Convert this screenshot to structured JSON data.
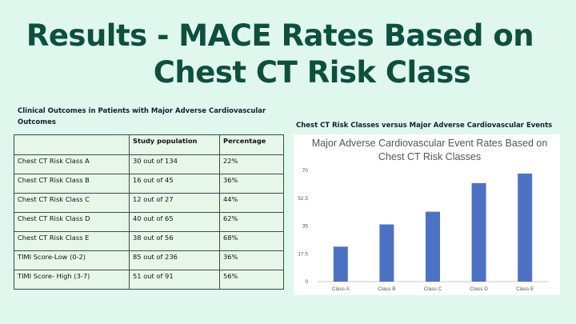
{
  "slide": {
    "title_line1": "Results - MACE Rates Based on",
    "title_line2": "Chest CT Risk Class"
  },
  "table": {
    "caption": "Clinical Outcomes in Patients with Major Adverse Cardiovascular Outcomes",
    "headers": [
      "",
      "Study population",
      "Percentage"
    ],
    "rows": [
      [
        "Chest CT Risk Class A",
        "30 out of 134",
        "22%"
      ],
      [
        "Chest CT Risk Class B",
        "16 out of 45",
        "36%"
      ],
      [
        "Chest CT Risk Class C",
        "12 out of 27",
        "44%"
      ],
      [
        "Chest CT Risk Class D",
        "40 out of 65",
        "62%"
      ],
      [
        "Chest CT Risk Class E",
        "38 out of 56",
        "68%"
      ],
      [
        "TIMI Score-Low (0-2)",
        "85 out of 236",
        "36%"
      ],
      [
        "TIMI Score- High (3-7)",
        "51 out of 91",
        "56%"
      ]
    ]
  },
  "chart_caption": "Chest CT Risk Classes versus Major Adverse Cardiovascular Events",
  "chart_data": {
    "type": "bar",
    "title_lines": [
      "Major Adverse Cardiovascular Event Rates Based on",
      "Chest CT Risk Classes"
    ],
    "categories": [
      "Class A",
      "Class B",
      "Class C",
      "Class D",
      "Class E"
    ],
    "values": [
      22,
      36,
      44,
      62,
      68
    ],
    "ylim": [
      0,
      70
    ],
    "yticks": [
      0,
      17.5,
      35,
      52.5,
      70
    ],
    "xlabel": "",
    "ylabel": "",
    "color": "#4d72c4"
  }
}
